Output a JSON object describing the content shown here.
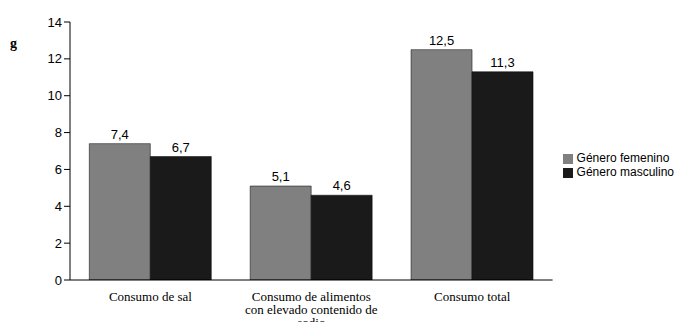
{
  "chart_data": {
    "type": "bar",
    "y_label": "g",
    "categories": [
      "Consumo de sal",
      "Consumo de alimentos con elevado contenido de sodio",
      "Consumo total"
    ],
    "series": [
      {
        "name": "Género femenino",
        "color": "#808080",
        "values": [
          7.4,
          5.1,
          12.5
        ],
        "value_labels": [
          "7,4",
          "5,1",
          "12,5"
        ]
      },
      {
        "name": "Género masculino",
        "color": "#1a1a1a",
        "values": [
          6.7,
          4.6,
          11.3
        ],
        "value_labels": [
          "6,7",
          "4,6",
          "11,3"
        ]
      }
    ],
    "ylim": [
      0,
      14
    ],
    "yticks": [
      0,
      2,
      4,
      6,
      8,
      10,
      12,
      14
    ],
    "grid": false,
    "legend": "right",
    "data_labels": true
  }
}
